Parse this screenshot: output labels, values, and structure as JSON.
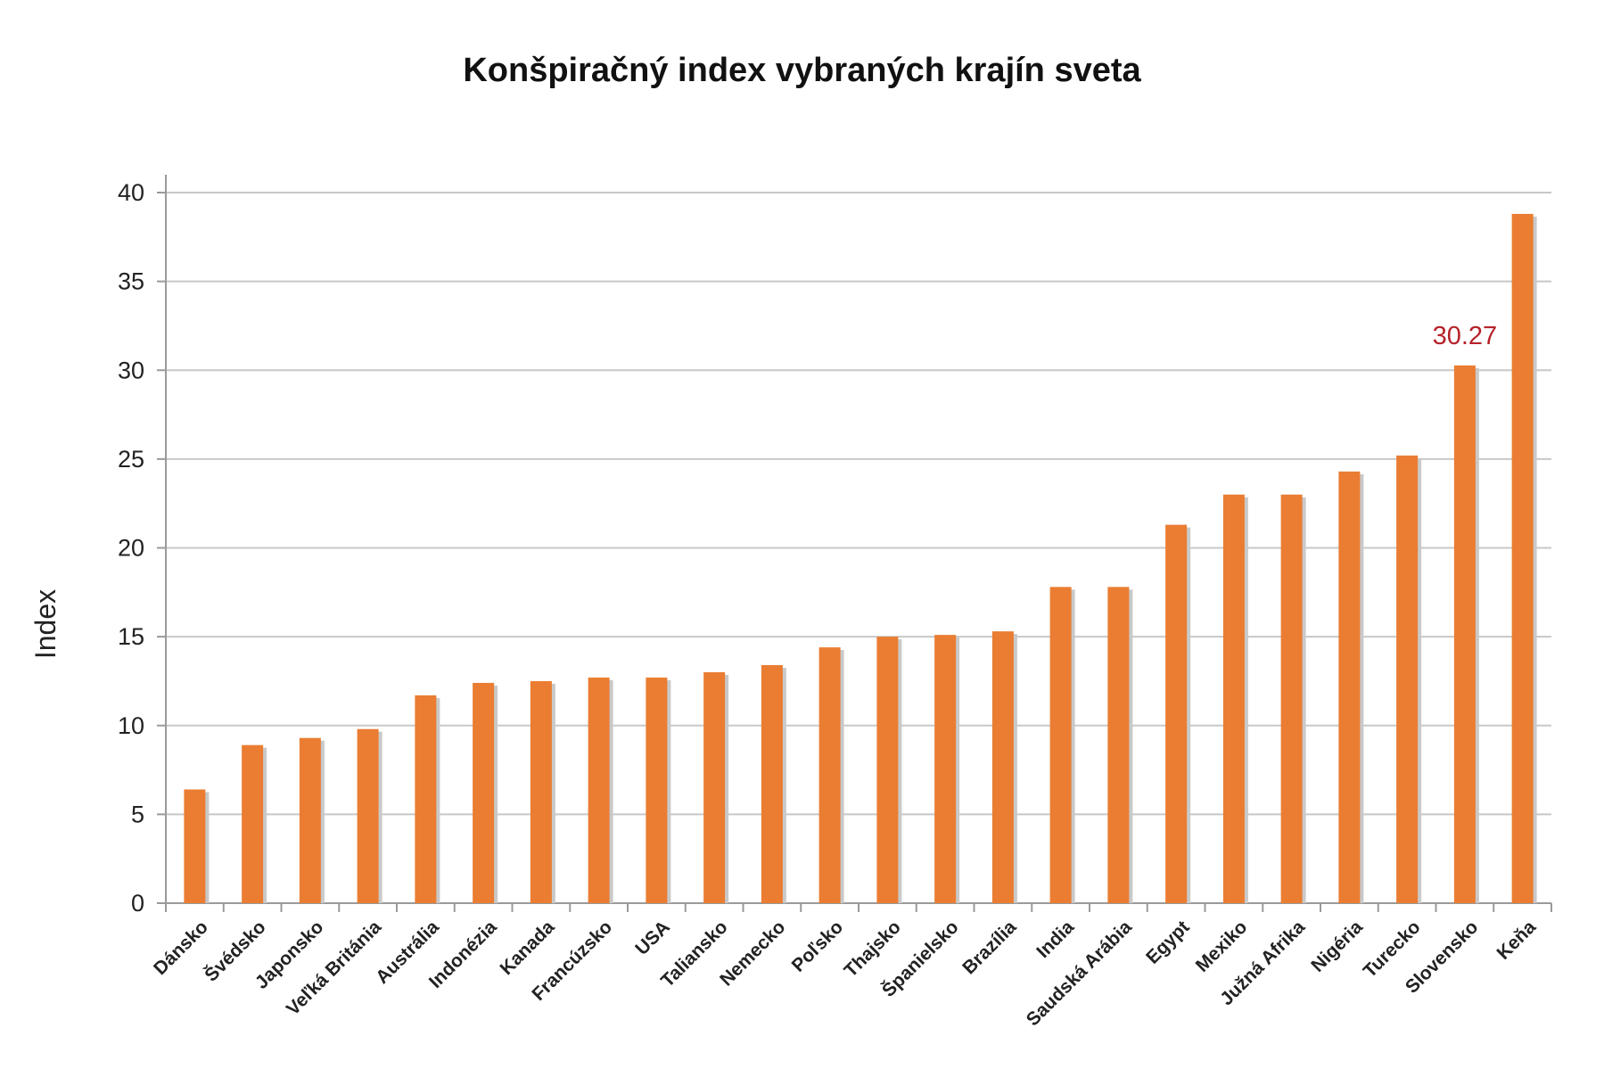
{
  "chart_data": {
    "type": "bar",
    "title": "Konšpiračný index vybraných krajín sveta",
    "xlabel": "",
    "ylabel": "Index",
    "ylim": [
      0,
      40
    ],
    "yticks": [
      "0",
      "5",
      "10",
      "15",
      "20",
      "25",
      "30",
      "35",
      "40"
    ],
    "grid": true,
    "categories": [
      "Dánsko",
      "Švédsko",
      "Japonsko",
      "Veľká Británia",
      "Austrália",
      "Indonézia",
      "Kanada",
      "Francúzsko",
      "USA",
      "Taliansko",
      "Nemecko",
      "Poľsko",
      "Thajsko",
      "Španielsko",
      "Brazília",
      "India",
      "Saudská Arábia",
      "Egypt",
      "Mexiko",
      "Južná Afrika",
      "Nigéria",
      "Turecko",
      "Slovensko",
      "Keňa"
    ],
    "values": [
      6.4,
      8.9,
      9.3,
      9.8,
      11.7,
      12.4,
      12.5,
      12.7,
      12.7,
      13.0,
      13.4,
      14.4,
      15.0,
      15.1,
      15.3,
      17.8,
      17.8,
      21.3,
      23.0,
      23.0,
      24.3,
      25.2,
      30.27,
      38.8
    ],
    "annotations": [
      {
        "category": "Slovensko",
        "text": "30.27"
      }
    ],
    "colors": {
      "bar": "#ea7d32",
      "bar_shadow": "#c9c9c9",
      "grid": "#c8c8c8",
      "axis": "#9a9a9a",
      "annotation": "#b5222a"
    }
  }
}
